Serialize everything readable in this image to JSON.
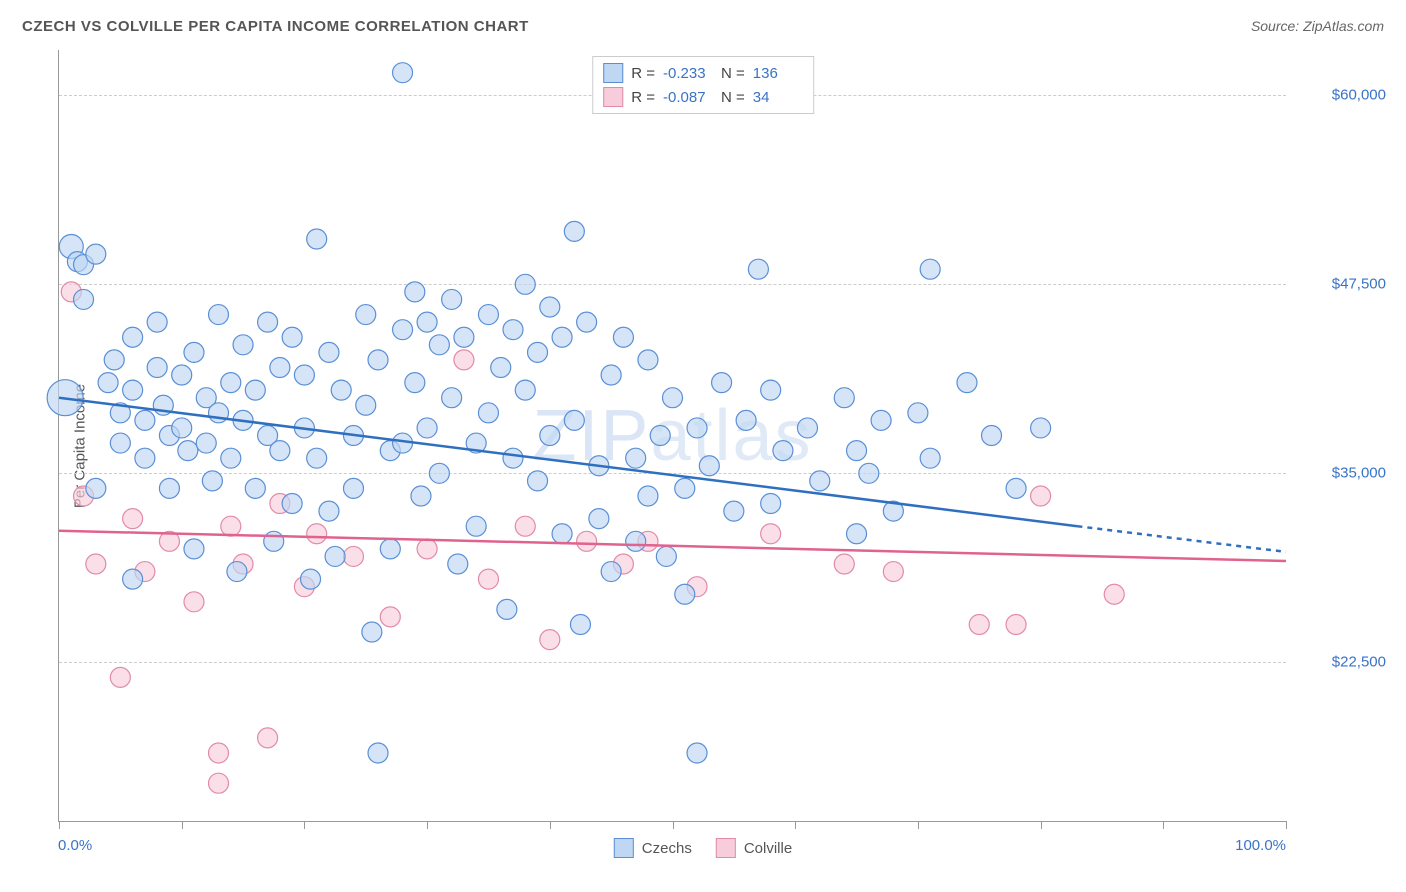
{
  "title": "CZECH VS COLVILLE PER CAPITA INCOME CORRELATION CHART",
  "source": "Source: ZipAtlas.com",
  "y_axis_title": "Per Capita Income",
  "watermark_zip": "ZIP",
  "watermark_atlas": "atlas",
  "x_axis": {
    "min_label": "0.0%",
    "max_label": "100.0%",
    "xlim": [
      0,
      100
    ],
    "tick_positions": [
      0,
      10,
      20,
      30,
      40,
      50,
      60,
      70,
      80,
      90,
      100
    ]
  },
  "y_axis": {
    "ylim": [
      12000,
      63000
    ],
    "gridlines": [
      {
        "value": 22500,
        "label": "$22,500"
      },
      {
        "value": 35000,
        "label": "$35,000"
      },
      {
        "value": 47500,
        "label": "$47,500"
      },
      {
        "value": 60000,
        "label": "$60,000"
      }
    ]
  },
  "colors": {
    "series1_fill": "#bfd7f2",
    "series1_stroke": "#5a8fd6",
    "series2_fill": "#f7cddb",
    "series2_stroke": "#e28aa8",
    "trend1": "#2f6fc0",
    "trend2": "#e0628f",
    "axis_text": "#3973c7",
    "title_text": "#555555",
    "grid": "#cccccc",
    "background": "#ffffff"
  },
  "legend_top": [
    {
      "series": 1,
      "r_label": "R =",
      "r_value": "-0.233",
      "n_label": "N =",
      "n_value": "136"
    },
    {
      "series": 2,
      "r_label": "R =",
      "r_value": "-0.087",
      "n_label": "N =",
      "n_value": "34"
    }
  ],
  "legend_bottom": [
    {
      "series": 1,
      "label": "Czechs"
    },
    {
      "series": 2,
      "label": "Colville"
    }
  ],
  "trend_lines": [
    {
      "series": 1,
      "x1": 0,
      "y1": 40000,
      "x2_solid": 83,
      "y2_solid": 31500,
      "x2_dash": 100,
      "y2_dash": 29800
    },
    {
      "series": 2,
      "x1": 0,
      "y1": 31200,
      "x2_solid": 100,
      "y2_solid": 29200
    }
  ],
  "marker_radius": 10,
  "scatter": {
    "series1": [
      {
        "x": 1,
        "y": 50000,
        "r": 12
      },
      {
        "x": 1.5,
        "y": 49000,
        "r": 10
      },
      {
        "x": 2,
        "y": 48800,
        "r": 10
      },
      {
        "x": 0.5,
        "y": 40000,
        "r": 18
      },
      {
        "x": 2,
        "y": 46500,
        "r": 10
      },
      {
        "x": 3,
        "y": 49500,
        "r": 10
      },
      {
        "x": 4,
        "y": 41000,
        "r": 10
      },
      {
        "x": 4.5,
        "y": 42500,
        "r": 10
      },
      {
        "x": 5,
        "y": 39000,
        "r": 10
      },
      {
        "x": 5,
        "y": 37000,
        "r": 10
      },
      {
        "x": 6,
        "y": 44000,
        "r": 10
      },
      {
        "x": 6,
        "y": 40500,
        "r": 10
      },
      {
        "x": 7,
        "y": 38500,
        "r": 10
      },
      {
        "x": 7,
        "y": 36000,
        "r": 10
      },
      {
        "x": 8,
        "y": 45000,
        "r": 10
      },
      {
        "x": 8,
        "y": 42000,
        "r": 10
      },
      {
        "x": 8.5,
        "y": 39500,
        "r": 10
      },
      {
        "x": 9,
        "y": 37500,
        "r": 10
      },
      {
        "x": 9,
        "y": 34000,
        "r": 10
      },
      {
        "x": 10,
        "y": 41500,
        "r": 10
      },
      {
        "x": 10,
        "y": 38000,
        "r": 10
      },
      {
        "x": 10.5,
        "y": 36500,
        "r": 10
      },
      {
        "x": 11,
        "y": 43000,
        "r": 10
      },
      {
        "x": 11,
        "y": 30000,
        "r": 10
      },
      {
        "x": 12,
        "y": 40000,
        "r": 10
      },
      {
        "x": 12,
        "y": 37000,
        "r": 10
      },
      {
        "x": 12.5,
        "y": 34500,
        "r": 10
      },
      {
        "x": 13,
        "y": 45500,
        "r": 10
      },
      {
        "x": 13,
        "y": 39000,
        "r": 10
      },
      {
        "x": 14,
        "y": 41000,
        "r": 10
      },
      {
        "x": 14,
        "y": 36000,
        "r": 10
      },
      {
        "x": 14.5,
        "y": 28500,
        "r": 10
      },
      {
        "x": 15,
        "y": 43500,
        "r": 10
      },
      {
        "x": 15,
        "y": 38500,
        "r": 10
      },
      {
        "x": 16,
        "y": 40500,
        "r": 10
      },
      {
        "x": 16,
        "y": 34000,
        "r": 10
      },
      {
        "x": 17,
        "y": 45000,
        "r": 10
      },
      {
        "x": 17,
        "y": 37500,
        "r": 10
      },
      {
        "x": 17.5,
        "y": 30500,
        "r": 10
      },
      {
        "x": 18,
        "y": 42000,
        "r": 10
      },
      {
        "x": 18,
        "y": 36500,
        "r": 10
      },
      {
        "x": 19,
        "y": 44000,
        "r": 10
      },
      {
        "x": 19,
        "y": 33000,
        "r": 10
      },
      {
        "x": 20,
        "y": 41500,
        "r": 10
      },
      {
        "x": 20,
        "y": 38000,
        "r": 10
      },
      {
        "x": 20.5,
        "y": 28000,
        "r": 10
      },
      {
        "x": 21,
        "y": 50500,
        "r": 10
      },
      {
        "x": 21,
        "y": 36000,
        "r": 10
      },
      {
        "x": 22,
        "y": 43000,
        "r": 10
      },
      {
        "x": 22,
        "y": 32500,
        "r": 10
      },
      {
        "x": 22.5,
        "y": 29500,
        "r": 10
      },
      {
        "x": 23,
        "y": 40500,
        "r": 10
      },
      {
        "x": 24,
        "y": 37500,
        "r": 10
      },
      {
        "x": 24,
        "y": 34000,
        "r": 10
      },
      {
        "x": 25,
        "y": 45500,
        "r": 10
      },
      {
        "x": 25,
        "y": 39500,
        "r": 10
      },
      {
        "x": 25.5,
        "y": 24500,
        "r": 10
      },
      {
        "x": 26,
        "y": 42500,
        "r": 10
      },
      {
        "x": 27,
        "y": 36500,
        "r": 10
      },
      {
        "x": 27,
        "y": 30000,
        "r": 10
      },
      {
        "x": 28,
        "y": 44500,
        "r": 10
      },
      {
        "x": 28,
        "y": 37000,
        "r": 10
      },
      {
        "x": 28,
        "y": 61500,
        "r": 10
      },
      {
        "x": 29,
        "y": 47000,
        "r": 10
      },
      {
        "x": 29,
        "y": 41000,
        "r": 10
      },
      {
        "x": 29.5,
        "y": 33500,
        "r": 10
      },
      {
        "x": 30,
        "y": 45000,
        "r": 10
      },
      {
        "x": 30,
        "y": 38000,
        "r": 10
      },
      {
        "x": 31,
        "y": 43500,
        "r": 10
      },
      {
        "x": 31,
        "y": 35000,
        "r": 10
      },
      {
        "x": 32,
        "y": 46500,
        "r": 10
      },
      {
        "x": 32,
        "y": 40000,
        "r": 10
      },
      {
        "x": 32.5,
        "y": 29000,
        "r": 10
      },
      {
        "x": 33,
        "y": 44000,
        "r": 10
      },
      {
        "x": 34,
        "y": 37000,
        "r": 10
      },
      {
        "x": 34,
        "y": 31500,
        "r": 10
      },
      {
        "x": 35,
        "y": 45500,
        "r": 10
      },
      {
        "x": 35,
        "y": 39000,
        "r": 10
      },
      {
        "x": 36,
        "y": 42000,
        "r": 10
      },
      {
        "x": 36.5,
        "y": 26000,
        "r": 10
      },
      {
        "x": 37,
        "y": 44500,
        "r": 10
      },
      {
        "x": 37,
        "y": 36000,
        "r": 10
      },
      {
        "x": 38,
        "y": 47500,
        "r": 10
      },
      {
        "x": 38,
        "y": 40500,
        "r": 10
      },
      {
        "x": 39,
        "y": 43000,
        "r": 10
      },
      {
        "x": 39,
        "y": 34500,
        "r": 10
      },
      {
        "x": 40,
        "y": 46000,
        "r": 10
      },
      {
        "x": 40,
        "y": 37500,
        "r": 10
      },
      {
        "x": 41,
        "y": 44000,
        "r": 10
      },
      {
        "x": 41,
        "y": 31000,
        "r": 10
      },
      {
        "x": 42,
        "y": 51000,
        "r": 10
      },
      {
        "x": 42,
        "y": 38500,
        "r": 10
      },
      {
        "x": 42.5,
        "y": 25000,
        "r": 10
      },
      {
        "x": 43,
        "y": 45000,
        "r": 10
      },
      {
        "x": 44,
        "y": 35500,
        "r": 10
      },
      {
        "x": 44,
        "y": 32000,
        "r": 10
      },
      {
        "x": 45,
        "y": 41500,
        "r": 10
      },
      {
        "x": 45,
        "y": 28500,
        "r": 10
      },
      {
        "x": 46,
        "y": 44000,
        "r": 10
      },
      {
        "x": 47,
        "y": 36000,
        "r": 10
      },
      {
        "x": 47,
        "y": 30500,
        "r": 10
      },
      {
        "x": 48,
        "y": 42500,
        "r": 10
      },
      {
        "x": 48,
        "y": 33500,
        "r": 10
      },
      {
        "x": 49,
        "y": 37500,
        "r": 10
      },
      {
        "x": 49.5,
        "y": 29500,
        "r": 10
      },
      {
        "x": 50,
        "y": 40000,
        "r": 10
      },
      {
        "x": 51,
        "y": 34000,
        "r": 10
      },
      {
        "x": 51,
        "y": 27000,
        "r": 10
      },
      {
        "x": 52,
        "y": 38000,
        "r": 10
      },
      {
        "x": 52,
        "y": 16500,
        "r": 10
      },
      {
        "x": 53,
        "y": 35500,
        "r": 10
      },
      {
        "x": 54,
        "y": 41000,
        "r": 10
      },
      {
        "x": 55,
        "y": 32500,
        "r": 10
      },
      {
        "x": 56,
        "y": 38500,
        "r": 10
      },
      {
        "x": 57,
        "y": 48500,
        "r": 10
      },
      {
        "x": 58,
        "y": 40500,
        "r": 10
      },
      {
        "x": 58,
        "y": 33000,
        "r": 10
      },
      {
        "x": 59,
        "y": 36500,
        "r": 10
      },
      {
        "x": 61,
        "y": 38000,
        "r": 10
      },
      {
        "x": 62,
        "y": 34500,
        "r": 10
      },
      {
        "x": 64,
        "y": 40000,
        "r": 10
      },
      {
        "x": 65,
        "y": 31000,
        "r": 10
      },
      {
        "x": 65,
        "y": 36500,
        "r": 10
      },
      {
        "x": 66,
        "y": 35000,
        "r": 10
      },
      {
        "x": 67,
        "y": 38500,
        "r": 10
      },
      {
        "x": 68,
        "y": 32500,
        "r": 10
      },
      {
        "x": 70,
        "y": 39000,
        "r": 10
      },
      {
        "x": 71,
        "y": 36000,
        "r": 10
      },
      {
        "x": 74,
        "y": 41000,
        "r": 10
      },
      {
        "x": 76,
        "y": 37500,
        "r": 10
      },
      {
        "x": 78,
        "y": 34000,
        "r": 10
      },
      {
        "x": 80,
        "y": 38000,
        "r": 10
      },
      {
        "x": 71,
        "y": 48500,
        "r": 10
      },
      {
        "x": 26,
        "y": 16500,
        "r": 10
      },
      {
        "x": 6,
        "y": 28000,
        "r": 10
      },
      {
        "x": 3,
        "y": 34000,
        "r": 10
      }
    ],
    "series2": [
      {
        "x": 1,
        "y": 47000,
        "r": 10
      },
      {
        "x": 2,
        "y": 33500,
        "r": 10
      },
      {
        "x": 3,
        "y": 29000,
        "r": 10
      },
      {
        "x": 5,
        "y": 21500,
        "r": 10
      },
      {
        "x": 6,
        "y": 32000,
        "r": 10
      },
      {
        "x": 7,
        "y": 28500,
        "r": 10
      },
      {
        "x": 9,
        "y": 30500,
        "r": 10
      },
      {
        "x": 11,
        "y": 26500,
        "r": 10
      },
      {
        "x": 13,
        "y": 16500,
        "r": 10
      },
      {
        "x": 14,
        "y": 31500,
        "r": 10
      },
      {
        "x": 15,
        "y": 29000,
        "r": 10
      },
      {
        "x": 17,
        "y": 17500,
        "r": 10
      },
      {
        "x": 18,
        "y": 33000,
        "r": 10
      },
      {
        "x": 20,
        "y": 27500,
        "r": 10
      },
      {
        "x": 21,
        "y": 31000,
        "r": 10
      },
      {
        "x": 24,
        "y": 29500,
        "r": 10
      },
      {
        "x": 27,
        "y": 25500,
        "r": 10
      },
      {
        "x": 30,
        "y": 30000,
        "r": 10
      },
      {
        "x": 33,
        "y": 42500,
        "r": 10
      },
      {
        "x": 35,
        "y": 28000,
        "r": 10
      },
      {
        "x": 38,
        "y": 31500,
        "r": 10
      },
      {
        "x": 40,
        "y": 24000,
        "r": 10
      },
      {
        "x": 43,
        "y": 30500,
        "r": 10
      },
      {
        "x": 46,
        "y": 29000,
        "r": 10
      },
      {
        "x": 48,
        "y": 30500,
        "r": 10
      },
      {
        "x": 52,
        "y": 27500,
        "r": 10
      },
      {
        "x": 58,
        "y": 31000,
        "r": 10
      },
      {
        "x": 64,
        "y": 29000,
        "r": 10
      },
      {
        "x": 68,
        "y": 28500,
        "r": 10
      },
      {
        "x": 75,
        "y": 25000,
        "r": 10
      },
      {
        "x": 78,
        "y": 25000,
        "r": 10
      },
      {
        "x": 80,
        "y": 33500,
        "r": 10
      },
      {
        "x": 86,
        "y": 27000,
        "r": 10
      },
      {
        "x": 13,
        "y": 14500,
        "r": 10
      }
    ]
  }
}
